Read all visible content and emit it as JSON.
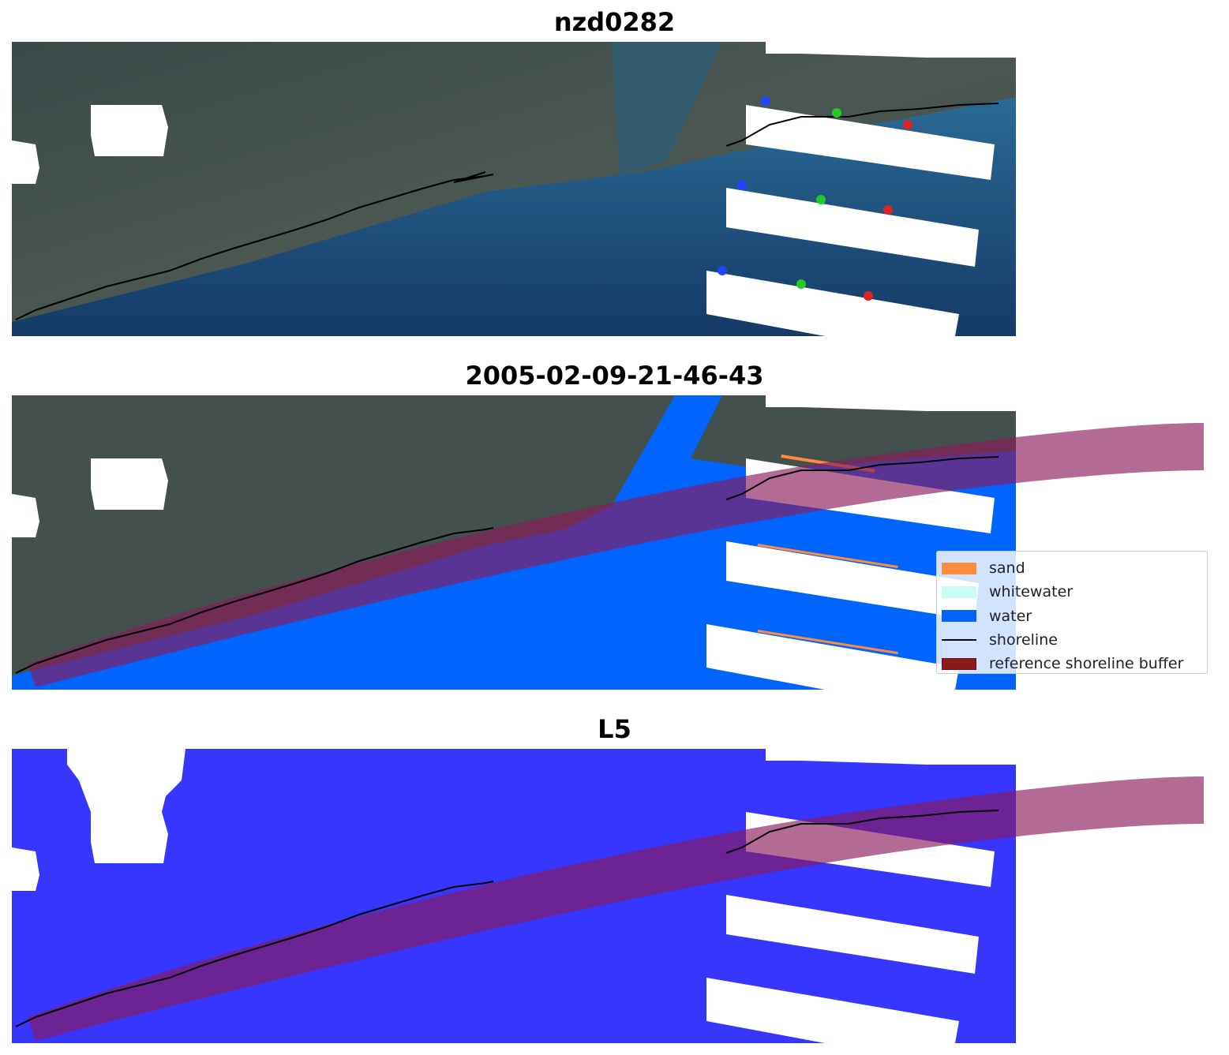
{
  "titles": {
    "site": "nzd0282",
    "date": "2005-02-09-21-46-43",
    "satellite": "L5"
  },
  "legend": {
    "items": [
      {
        "label": "sand",
        "color": "#ff8c3a",
        "kind": "patch"
      },
      {
        "label": "whitewater",
        "color": "#c9fbf7",
        "kind": "patch"
      },
      {
        "label": "water",
        "color": "#0064ff",
        "kind": "patch"
      },
      {
        "label": "shoreline",
        "color": "#000000",
        "kind": "line"
      },
      {
        "label": "reference shoreline buffer",
        "color": "#8b1a1a",
        "kind": "patch"
      }
    ]
  },
  "colors": {
    "land": "#3c4a47",
    "sea": "#1d4a78",
    "water_class": "#0064ff",
    "binary_water": "#3636ff",
    "buffer": "#b0417f",
    "nodata": "#ffffff"
  }
}
